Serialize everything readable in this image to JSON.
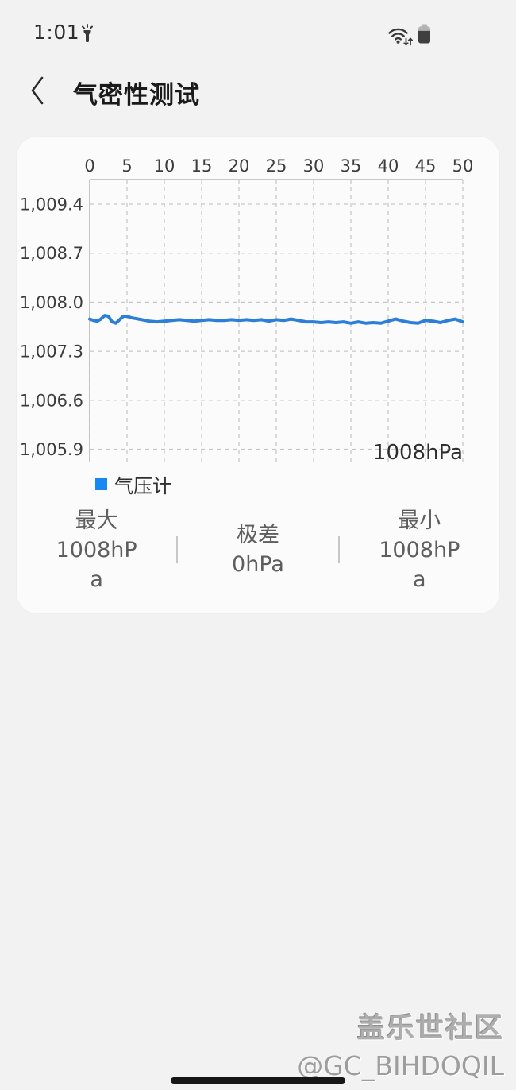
{
  "status_bar": {
    "time": "1:01"
  },
  "header": {
    "title": "气密性测试"
  },
  "chart_card": {
    "value_label": "1008hPa",
    "legend": {
      "label": "气压计",
      "color": "#1787f1"
    },
    "stats": [
      {
        "label": "最大",
        "value": "1008hPa"
      },
      {
        "label": "极差",
        "value": "0hPa"
      },
      {
        "label": "最小",
        "value": "1008hPa"
      }
    ]
  },
  "chart_data": {
    "type": "line",
    "title": "",
    "xlabel": "",
    "ylabel": "hPa",
    "x_range": [
      0,
      50
    ],
    "x_ticks": [
      0,
      5,
      10,
      15,
      20,
      25,
      30,
      35,
      40,
      45,
      50
    ],
    "y_ticks": [
      {
        "v": 1009.4,
        "label": "1,009.4"
      },
      {
        "v": 1008.7,
        "label": "1,008.7"
      },
      {
        "v": 1008.0,
        "label": "1,008.0"
      },
      {
        "v": 1007.3,
        "label": "1,007.3"
      },
      {
        "v": 1006.6,
        "label": "1,006.6"
      },
      {
        "v": 1005.9,
        "label": "1,005.9"
      }
    ],
    "grid": "dashed",
    "legend_position": "bottom-left",
    "annotation": "1008hPa",
    "series": [
      {
        "name": "气压计",
        "color": "#2b7fd9",
        "points": [
          [
            0,
            1007.76
          ],
          [
            0.5,
            1007.74
          ],
          [
            1,
            1007.73
          ],
          [
            1.5,
            1007.76
          ],
          [
            2,
            1007.81
          ],
          [
            2.5,
            1007.8
          ],
          [
            3,
            1007.72
          ],
          [
            3.5,
            1007.7
          ],
          [
            4,
            1007.75
          ],
          [
            4.5,
            1007.8
          ],
          [
            5,
            1007.8
          ],
          [
            5.5,
            1007.78
          ],
          [
            6,
            1007.77
          ],
          [
            7,
            1007.75
          ],
          [
            8,
            1007.73
          ],
          [
            9,
            1007.72
          ],
          [
            10,
            1007.73
          ],
          [
            11,
            1007.74
          ],
          [
            12,
            1007.75
          ],
          [
            13,
            1007.74
          ],
          [
            14,
            1007.73
          ],
          [
            15,
            1007.74
          ],
          [
            16,
            1007.75
          ],
          [
            17,
            1007.74
          ],
          [
            18,
            1007.74
          ],
          [
            19,
            1007.75
          ],
          [
            20,
            1007.74
          ],
          [
            21,
            1007.75
          ],
          [
            22,
            1007.74
          ],
          [
            23,
            1007.75
          ],
          [
            24,
            1007.73
          ],
          [
            25,
            1007.75
          ],
          [
            26,
            1007.74
          ],
          [
            27,
            1007.76
          ],
          [
            28,
            1007.74
          ],
          [
            29,
            1007.72
          ],
          [
            30,
            1007.72
          ],
          [
            31,
            1007.71
          ],
          [
            32,
            1007.72
          ],
          [
            33,
            1007.71
          ],
          [
            34,
            1007.72
          ],
          [
            35,
            1007.7
          ],
          [
            36,
            1007.72
          ],
          [
            37,
            1007.7
          ],
          [
            38,
            1007.71
          ],
          [
            39,
            1007.7
          ],
          [
            40,
            1007.73
          ],
          [
            41,
            1007.76
          ],
          [
            42,
            1007.73
          ],
          [
            43,
            1007.71
          ],
          [
            44,
            1007.7
          ],
          [
            45,
            1007.74
          ],
          [
            46,
            1007.73
          ],
          [
            47,
            1007.71
          ],
          [
            48,
            1007.74
          ],
          [
            49,
            1007.76
          ],
          [
            50,
            1007.72
          ]
        ]
      }
    ]
  },
  "watermark": {
    "line1": "盖乐世社区",
    "line2": "@GC_BIHDOQIL"
  },
  "colors": {
    "page_bg": "#f2f2f2",
    "card_bg": "#fbfbfb",
    "axis": "#b8b8b8",
    "gridline": "#c8c8c8",
    "label_text": "#3c3c3c",
    "stat_text": "#5e5e5e"
  }
}
